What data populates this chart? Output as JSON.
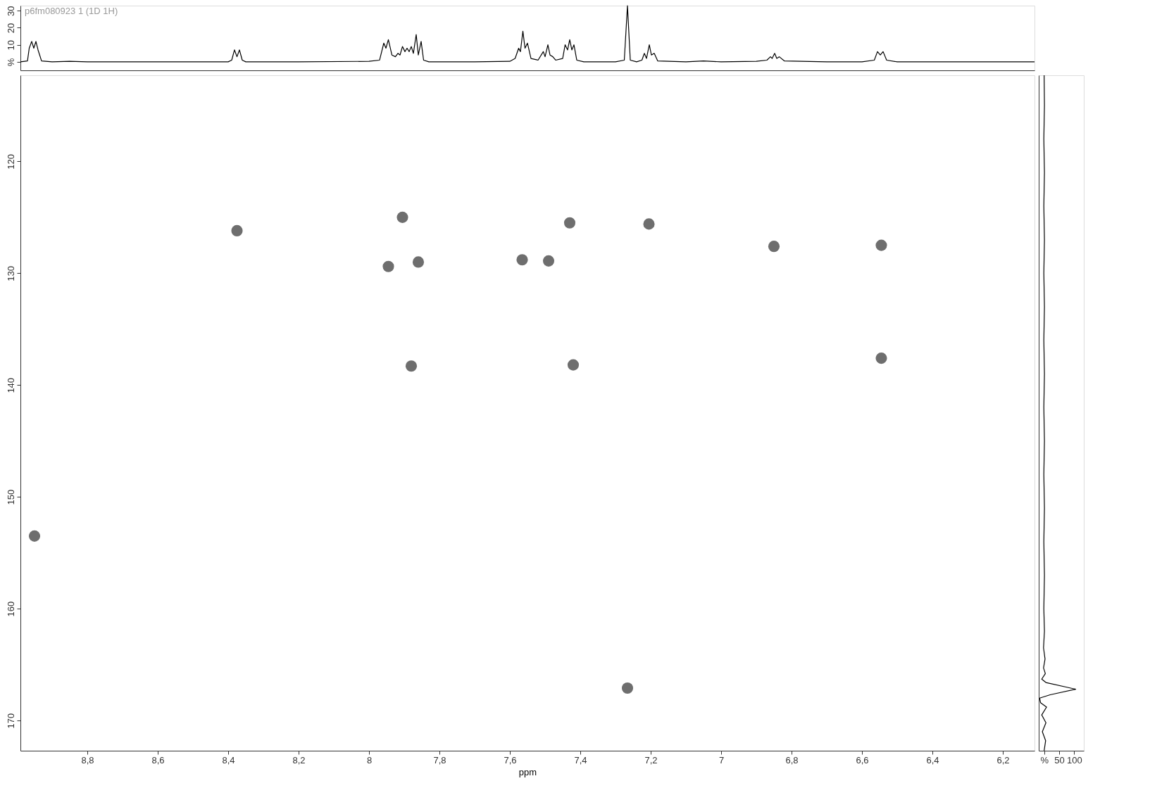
{
  "chart_data": [
    {
      "type": "line",
      "title": "p6fm080923 1 (1D 1H)",
      "xlim": [
        8.99,
        6.11
      ],
      "ylim": [
        -5,
        33
      ],
      "yticks": [
        {
          "value": 0,
          "label": "%"
        },
        10,
        20,
        30
      ],
      "tick_labels": "y",
      "grid": false,
      "marker": "none",
      "line_style": "solid",
      "series": [
        {
          "color": "#000000",
          "x": [
            8.99,
            8.97,
            8.965,
            8.958,
            8.952,
            8.946,
            8.94,
            8.93,
            8.9,
            8.85,
            8.8,
            8.6,
            8.4,
            8.39,
            8.382,
            8.375,
            8.368,
            8.36,
            8.35,
            8.2,
            8.0,
            7.97,
            7.958,
            7.952,
            7.945,
            7.935,
            7.925,
            7.918,
            7.912,
            7.905,
            7.898,
            7.892,
            7.886,
            7.88,
            7.874,
            7.866,
            7.86,
            7.852,
            7.845,
            7.83,
            7.7,
            7.6,
            7.585,
            7.575,
            7.57,
            7.563,
            7.557,
            7.55,
            7.54,
            7.52,
            7.505,
            7.5,
            7.492,
            7.486,
            7.478,
            7.47,
            7.45,
            7.443,
            7.436,
            7.43,
            7.424,
            7.418,
            7.41,
            7.39,
            7.3,
            7.275,
            7.266,
            7.258,
            7.24,
            7.225,
            7.218,
            7.212,
            7.204,
            7.198,
            7.19,
            7.18,
            7.1,
            7.05,
            7.0,
            6.9,
            6.87,
            6.86,
            6.855,
            6.848,
            6.842,
            6.835,
            6.82,
            6.7,
            6.6,
            6.565,
            6.556,
            6.548,
            6.54,
            6.53,
            6.5,
            6.3,
            6.11
          ],
          "values": [
            0,
            0.5,
            8,
            12,
            8,
            12,
            7,
            0.5,
            0,
            0.3,
            0,
            0,
            0,
            1,
            7,
            3,
            7,
            1,
            0,
            0,
            0.3,
            1,
            11,
            8,
            13,
            4,
            3,
            5,
            4,
            9,
            6,
            8,
            6,
            9,
            5,
            16,
            4,
            12,
            1,
            0,
            0,
            0.3,
            2,
            8,
            6,
            18,
            8,
            11,
            2,
            1,
            6,
            3,
            10,
            4,
            3,
            1,
            2,
            10,
            7,
            13,
            7,
            10,
            1,
            0,
            0,
            1,
            33,
            1,
            0,
            1,
            5,
            2,
            10,
            4,
            5,
            0.5,
            0,
            0.5,
            0,
            0.3,
            1,
            3,
            2,
            5,
            2,
            3,
            0.5,
            0,
            0,
            1,
            6,
            4,
            6,
            1,
            0,
            0,
            0
          ]
        }
      ]
    },
    {
      "type": "scatter",
      "xlabel": "ppm",
      "xlim": [
        8.99,
        6.11
      ],
      "ylim": [
        172.7,
        112.3
      ],
      "xticks": [
        {
          "value": 8.8,
          "label": "8,8"
        },
        {
          "value": 8.6,
          "label": "8,6"
        },
        {
          "value": 8.4,
          "label": "8,4"
        },
        {
          "value": 8.2,
          "label": "8,2"
        },
        8,
        {
          "value": 7.8,
          "label": "7,8"
        },
        {
          "value": 7.6,
          "label": "7,6"
        },
        {
          "value": 7.4,
          "label": "7,4"
        },
        {
          "value": 7.2,
          "label": "7,2"
        },
        7,
        {
          "value": 6.8,
          "label": "6,8"
        },
        {
          "value": 6.6,
          "label": "6,6"
        },
        {
          "value": 6.4,
          "label": "6,4"
        },
        {
          "value": 6.2,
          "label": "6,2"
        }
      ],
      "yticks": [
        120,
        130,
        140,
        150,
        160,
        170
      ],
      "grid": false,
      "marker": "circle",
      "series": [
        {
          "color": "#6e6e6e",
          "x": [
            8.95,
            8.375,
            7.945,
            7.905,
            7.86,
            7.88,
            7.565,
            7.49,
            7.43,
            7.42,
            7.205,
            6.85,
            6.545,
            6.545,
            7.266
          ],
          "values": [
            153.5,
            126.2,
            129.4,
            125.0,
            129.0,
            138.3,
            128.8,
            128.9,
            125.5,
            138.2,
            125.6,
            127.6,
            137.6,
            127.5,
            167.1
          ]
        }
      ]
    },
    {
      "type": "line",
      "orientation": "horizontal",
      "xlim": [
        -18,
        132
      ],
      "ylim": [
        172.7,
        112.3
      ],
      "xticks": [
        {
          "value": 0,
          "label": "%"
        },
        50,
        100
      ],
      "tick_labels": "x",
      "grid": false,
      "marker": "none",
      "line_style": "solid",
      "series": [
        {
          "color": "#000000",
          "x": [
            112.3,
            115,
            118,
            121,
            124,
            127,
            130,
            133,
            136,
            139,
            142,
            145,
            148,
            151,
            154,
            157,
            160,
            162,
            163.5,
            164.5,
            165.3,
            165.8,
            166.3,
            166.6,
            167.2,
            167.7,
            168.0,
            168.4,
            168.8,
            169.5,
            170.2,
            171,
            171.8,
            172.7
          ],
          "values": [
            0,
            1,
            -1,
            1,
            -1,
            1,
            -1,
            1,
            -1,
            1,
            -1,
            1,
            -1,
            1,
            -1,
            1,
            -1,
            1,
            -2,
            3,
            -2,
            4,
            -8,
            6,
            105,
            20,
            -15,
            -12,
            8,
            -8,
            6,
            -6,
            5,
            0
          ]
        }
      ]
    }
  ]
}
